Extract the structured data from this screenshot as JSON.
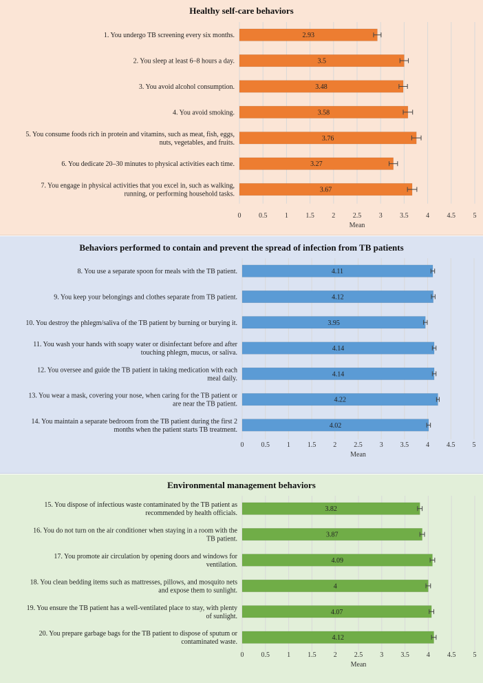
{
  "chart_data": [
    {
      "type": "bar",
      "orientation": "horizontal",
      "title": "Healthy self-care behaviors",
      "xlabel": "Mean",
      "xlim": [
        0,
        5
      ],
      "xticks": [
        "0",
        "0.5",
        "1",
        "1.5",
        "2",
        "2.5",
        "3",
        "3.5",
        "4",
        "4.5",
        "5"
      ],
      "color": "#ed7d31",
      "error_bars": true,
      "grid": "vertical",
      "categories": [
        [
          "1. You undergo TB screening every six months."
        ],
        [
          "2. You sleep at least 6–8 hours a day."
        ],
        [
          "3. You avoid alcohol consumption."
        ],
        [
          "4. You avoid smoking."
        ],
        [
          "5. You consume foods rich in protein and vitamins, such as meat, fish, eggs,",
          "nuts, vegetables, and fruits."
        ],
        [
          "6. You dedicate 20–30 minutes to physical activities each time."
        ],
        [
          "7. You engage in physical activities that you excel in, such as walking,",
          "running, or performing household tasks."
        ]
      ],
      "values": [
        2.93,
        3.5,
        3.48,
        3.58,
        3.76,
        3.27,
        3.67
      ],
      "value_labels": [
        "2.93",
        "3.5",
        "3.48",
        "3.58",
        "3.76",
        "3.27",
        "3.67"
      ],
      "errors": [
        0.08,
        0.09,
        0.09,
        0.1,
        0.1,
        0.09,
        0.1
      ]
    },
    {
      "type": "bar",
      "orientation": "horizontal",
      "title": "Behaviors performed to contain and prevent the spread of infection from TB patients",
      "xlabel": "Mean",
      "xlim": [
        0,
        5
      ],
      "xticks": [
        "0",
        "0.5",
        "1",
        "1.5",
        "2",
        "2.5",
        "3",
        "3.5",
        "4",
        "4.5",
        "5"
      ],
      "color": "#5b9bd5",
      "error_bars": true,
      "grid": "vertical",
      "categories": [
        [
          "8. You use a separate spoon for meals with the TB patient."
        ],
        [
          "9. You keep your belongings and clothes separate from TB patient."
        ],
        [
          "10. You destroy the phlegm/saliva of the TB patient by burning or burying it."
        ],
        [
          "11. You wash your hands with soapy water or disinfectant before and after",
          "touching phlegm, mucus, or saliva."
        ],
        [
          "12. You oversee and guide the TB patient in taking medication with each",
          "meal daily."
        ],
        [
          "13. You wear a mask, covering your nose, when caring for the TB patient or",
          "are near the TB patient."
        ],
        [
          "14. You maintain a separate bedroom from the TB patient during the first 2",
          "months when the patient starts TB treatment."
        ]
      ],
      "values": [
        4.11,
        4.12,
        3.95,
        4.14,
        4.14,
        4.22,
        4.02
      ],
      "value_labels": [
        "4.11",
        "4.12",
        "3.95",
        "4.14",
        "4.14",
        "4.22",
        "4.02"
      ],
      "errors": [
        0.04,
        0.04,
        0.04,
        0.04,
        0.04,
        0.03,
        0.04
      ]
    },
    {
      "type": "bar",
      "orientation": "horizontal",
      "title": "Environmental management behaviors",
      "xlabel": "Mean",
      "xlim": [
        0,
        5
      ],
      "xticks": [
        "0",
        "0.5",
        "1",
        "1.5",
        "2",
        "2.5",
        "3",
        "3.5",
        "4",
        "4.5",
        "5"
      ],
      "color": "#70ad47",
      "error_bars": true,
      "grid": "vertical",
      "categories": [
        [
          "15. You dispose of infectious waste contaminated by the TB patient as",
          "recommended by health officials."
        ],
        [
          "16. You do not turn on the air conditioner when staying in a room with the",
          "TB patient."
        ],
        [
          "17. You promote air circulation by opening doors and windows for",
          "ventilation."
        ],
        [
          "18. You clean bedding items such as mattresses, pillows, and mosquito nets",
          "and expose them to sunlight."
        ],
        [
          "19. You ensure the TB patient has a well-ventilated place to stay, with plenty",
          "of sunlight."
        ],
        [
          "20. You prepare garbage bags for the TB patient to dispose of sputum or",
          "contaminated waste."
        ]
      ],
      "values": [
        3.82,
        3.87,
        4.09,
        4,
        4.07,
        4.12
      ],
      "value_labels": [
        "3.82",
        "3.87",
        "4.09",
        "4",
        "4.07",
        "4.12"
      ],
      "errors": [
        0.05,
        0.05,
        0.05,
        0.05,
        0.05,
        0.05
      ]
    }
  ]
}
